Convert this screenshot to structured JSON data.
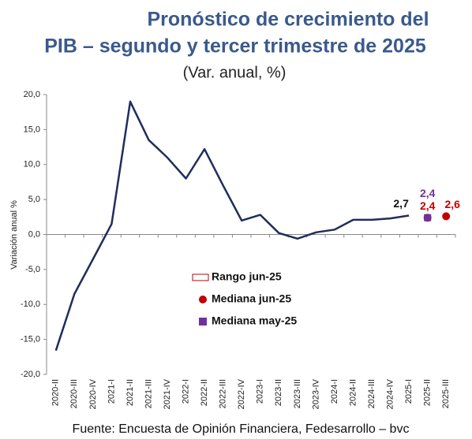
{
  "chart_data": {
    "type": "line",
    "title": [
      "Pronóstico de crecimiento del",
      "PIB – segundo y tercer trimestre de 2025"
    ],
    "subtitle": "(Var. anual, %)",
    "y_label": "Variación anual %",
    "source": "Fuente: Encuesta de Opinión Financiera, Fedesarrollo – bvc",
    "categories": [
      "2020-II",
      "2020-III",
      "2020-IV",
      "2021-I",
      "2021-II",
      "2021-III",
      "2021-IV",
      "2022-I",
      "2022-II",
      "2022-III",
      "2022-IV",
      "2023-I",
      "2023-II",
      "2023-III",
      "2023-IV",
      "2024-I",
      "2024-II",
      "2024-III",
      "2024-IV",
      "2025-I",
      "2025-II",
      "2025-III"
    ],
    "series": [
      {
        "color": "#1f2d5c",
        "marker": "line",
        "values": [
          -16.6,
          -8.5,
          -3.5,
          1.5,
          19.0,
          13.5,
          11.0,
          8.0,
          12.2,
          7.0,
          2.0,
          2.8,
          0.2,
          -0.6,
          0.3,
          0.7,
          2.1,
          2.1,
          2.3,
          2.7,
          null,
          null
        ],
        "value_labels": [
          null,
          null,
          null,
          null,
          null,
          null,
          null,
          null,
          null,
          null,
          null,
          null,
          null,
          null,
          null,
          null,
          null,
          null,
          null,
          "2,7",
          null,
          null
        ]
      },
      {
        "name": "Rango jun-25",
        "color": "#c00000",
        "marker": "rect",
        "values": [
          null,
          null,
          null,
          null,
          null,
          null,
          null,
          null,
          null,
          null,
          null,
          null,
          null,
          null,
          null,
          null,
          null,
          null,
          null,
          null,
          null,
          null
        ]
      },
      {
        "name": "Mediana jun-25",
        "color": "#c00000",
        "marker": "circle",
        "values": [
          null,
          null,
          null,
          null,
          null,
          null,
          null,
          null,
          null,
          null,
          null,
          null,
          null,
          null,
          null,
          null,
          null,
          null,
          null,
          null,
          2.4,
          2.6
        ],
        "value_labels": [
          null,
          null,
          null,
          null,
          null,
          null,
          null,
          null,
          null,
          null,
          null,
          null,
          null,
          null,
          null,
          null,
          null,
          null,
          null,
          null,
          "2,4",
          "2,6"
        ]
      },
      {
        "name": "Mediana may-25",
        "color": "#7030a0",
        "marker": "square",
        "values": [
          null,
          null,
          null,
          null,
          null,
          null,
          null,
          null,
          null,
          null,
          null,
          null,
          null,
          null,
          null,
          null,
          null,
          null,
          null,
          null,
          2.4,
          null
        ],
        "value_labels": [
          null,
          null,
          null,
          null,
          null,
          null,
          null,
          null,
          null,
          null,
          null,
          null,
          null,
          null,
          null,
          null,
          null,
          null,
          null,
          null,
          "2,4",
          null
        ]
      }
    ],
    "ylim": [
      -20,
      20
    ],
    "yticks": [
      {
        "value": -20,
        "label": "-20,0"
      },
      {
        "value": -15,
        "label": "-15,0"
      },
      {
        "value": -10,
        "label": "-10,0"
      },
      {
        "value": -5,
        "label": "-5,0"
      },
      {
        "value": 0,
        "label": "0,0"
      },
      {
        "value": 5,
        "label": "5,0"
      },
      {
        "value": 10,
        "label": "10,0"
      },
      {
        "value": 15,
        "label": "15,0"
      },
      {
        "value": 20,
        "label": "20,0"
      }
    ],
    "grid": false
  }
}
